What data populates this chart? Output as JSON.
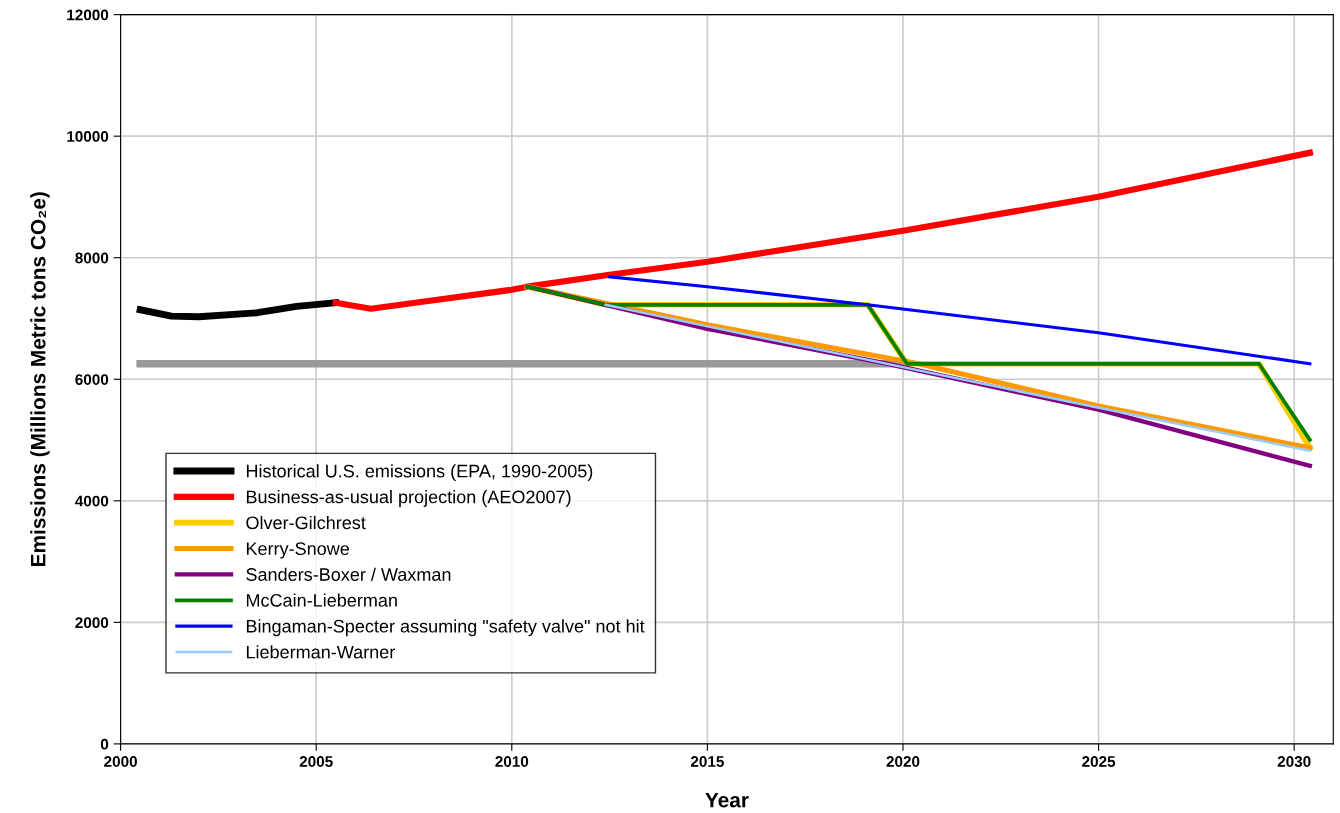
{
  "chart_data": {
    "type": "line",
    "xlabel": "Year",
    "ylabel": "Emissions (Millions Metric tons CO₂e)",
    "xlim": [
      2000,
      2031
    ],
    "xticks": [
      2000,
      2005,
      2010,
      2015,
      2020,
      2025,
      2030
    ],
    "ylim": [
      0,
      12000
    ],
    "yticks": [
      0,
      2000,
      4000,
      6000,
      8000,
      10000,
      12000
    ],
    "grid": true,
    "legend": "bottom left",
    "marker": "none",
    "line_style": "solid",
    "series": [
      {
        "color": "#999999",
        "x": [
          2000.5,
          2020.1
        ],
        "values": [
          6255,
          6255
        ]
      },
      {
        "name": "Historical U.S. emissions (EPA, 1990-2005)",
        "color": "#000000",
        "x": [
          2000.5,
          2001.3,
          2002,
          2003.5,
          2004.5,
          2005.5
        ],
        "values": [
          7144,
          7040,
          7029,
          7095,
          7200,
          7259
        ]
      },
      {
        "name": "Business-as-usual projection (AEO2007)",
        "color": "#ff0000",
        "x": [
          2005.5,
          2006.4,
          2008,
          2010,
          2010.4,
          2012.5,
          2015,
          2020,
          2025,
          2030.4
        ],
        "values": [
          7259,
          7160,
          7300,
          7473,
          7523,
          7720,
          7934,
          8444,
          9004,
          9728
        ]
      },
      {
        "name": "Olver-Gilchrest",
        "color": "#ffcc00",
        "x": [
          2010.4,
          2012.4,
          2019.1,
          2020.1,
          2029.1,
          2030.4
        ],
        "values": [
          7523,
          7226,
          7226,
          6255,
          6255,
          4872
        ]
      },
      {
        "name": "Kerry-Snowe",
        "color": "#ff9900",
        "x": [
          2010.4,
          2015,
          2020.4,
          2025,
          2030.4
        ],
        "values": [
          7523,
          6897,
          6255,
          5560,
          4872
        ]
      },
      {
        "name": "Sanders-Boxer / Waxman",
        "color": "#800080",
        "x": [
          2010.4,
          2015,
          2019.6,
          2025,
          2030.4
        ],
        "values": [
          7523,
          6830,
          6255,
          5500,
          4576
        ]
      },
      {
        "name": "McCain-Lieberman",
        "color": "#008000",
        "x": [
          2010.4,
          2012.4,
          2019.1,
          2020.1,
          2029.1,
          2030.4
        ],
        "values": [
          7523,
          7226,
          7226,
          6255,
          6255,
          5004
        ]
      },
      {
        "name": "Bingaman-Specter assuming \"safety valve\" not hit",
        "color": "#0000ff",
        "x": [
          2012.5,
          2015,
          2019.1,
          2025,
          2030.4
        ],
        "values": [
          7687,
          7523,
          7226,
          6765,
          6255
        ]
      },
      {
        "name": "Lieberman-Warner",
        "color": "#99ccff",
        "x": [
          2012.4,
          2015,
          2020,
          2025,
          2030.4
        ],
        "values": [
          7226,
          6870,
          6200,
          5530,
          4823
        ]
      }
    ]
  }
}
